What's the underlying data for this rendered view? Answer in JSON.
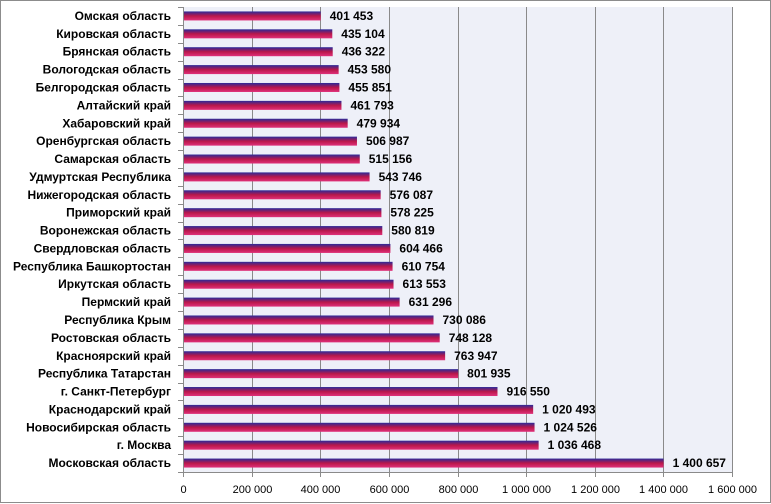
{
  "chart_data": {
    "type": "bar",
    "orientation": "horizontal",
    "categories": [
      "Омская область",
      "Кировская область",
      "Брянская область",
      "Вологодская область",
      "Белгородская область",
      "Алтайский край",
      "Хабаровский край",
      "Оренбургская область",
      "Самарская область",
      "Удмуртская Республика",
      "Нижегородская область",
      "Приморский край",
      "Воронежская область",
      "Свердловская область",
      "Республика Башкортостан",
      "Иркутская область",
      "Пермский край",
      "Республика Крым",
      "Ростовская область",
      "Красноярский край",
      "Республика Татарстан",
      "г. Санкт-Петербург",
      "Краснодарский край",
      "Новосибирская область",
      "г. Москва",
      "Московская область"
    ],
    "values": [
      401453,
      435104,
      436322,
      453580,
      455851,
      461793,
      479934,
      506987,
      515156,
      543746,
      576087,
      578225,
      580819,
      604466,
      610754,
      613553,
      631296,
      730086,
      748128,
      763947,
      801935,
      916550,
      1020493,
      1024526,
      1036468,
      1400657
    ],
    "value_labels": [
      "401 453",
      "435 104",
      "436 322",
      "453 580",
      "455 851",
      "461 793",
      "479 934",
      "506 987",
      "515 156",
      "543 746",
      "576 087",
      "578 225",
      "580 819",
      "604 466",
      "610 754",
      "613 553",
      "631 296",
      "730 086",
      "748 128",
      "763 947",
      "801 935",
      "916 550",
      "1 020 493",
      "1 024 526",
      "1 036 468",
      "1 400 657"
    ],
    "xlim": [
      0,
      1600000
    ],
    "x_ticks": [
      0,
      200000,
      400000,
      600000,
      800000,
      1000000,
      1200000,
      1400000,
      1600000
    ],
    "x_tick_labels": [
      "0",
      "200 000",
      "400 000",
      "600 000",
      "800 000",
      "1 000 000",
      "1 200 000",
      "1 400 000",
      "1 600 000"
    ],
    "grid": "vertical",
    "legend": "none",
    "title": "",
    "xlabel": "",
    "ylabel": "",
    "colors": {
      "bar_top": "#2a2a9a",
      "bar_mid": "#b8174a",
      "bar_bottom": "#e0307a",
      "plot_bg": "#eef0f8",
      "gridline": "#8a8a8a",
      "frame": "#8c8c8c"
    }
  }
}
